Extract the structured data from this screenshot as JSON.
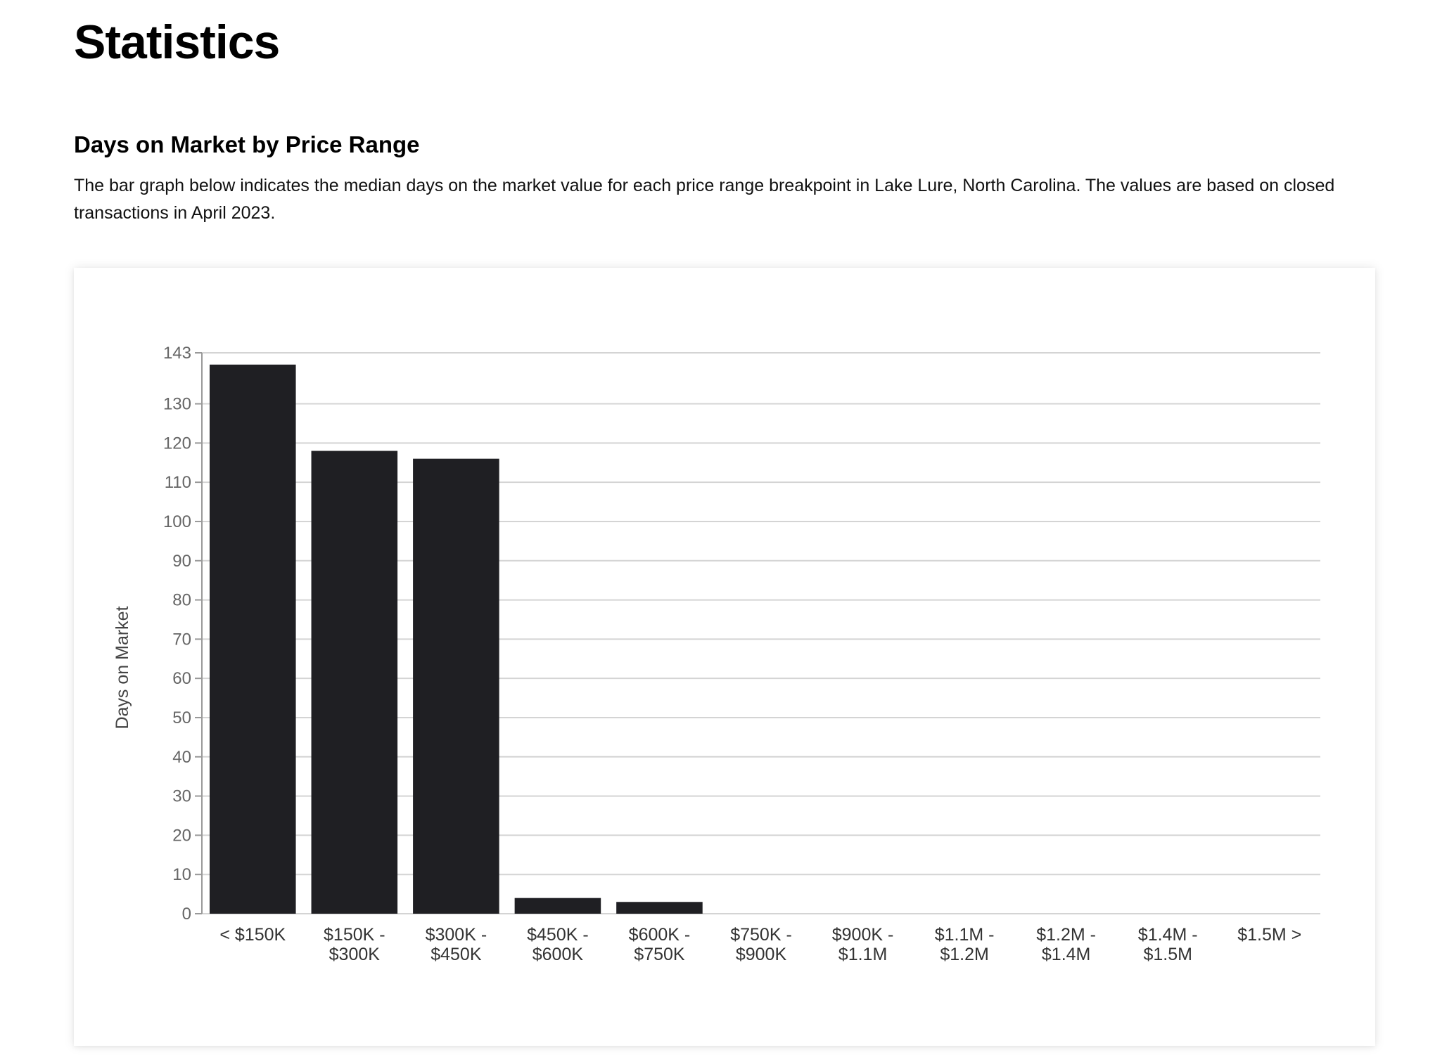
{
  "page": {
    "title": "Statistics"
  },
  "section": {
    "title": "Days on Market by Price Range",
    "description": "The bar graph below indicates the median days on the market value for each price range breakpoint in Lake Lure, North Carolina. The values are based on closed transactions in April 2023."
  },
  "chart_data": {
    "type": "bar",
    "title": "",
    "xlabel": "",
    "ylabel": "Days on Market",
    "categories": [
      [
        "< $150K"
      ],
      [
        "$150K -",
        "$300K"
      ],
      [
        "$300K -",
        "$450K"
      ],
      [
        "$450K -",
        "$600K"
      ],
      [
        "$600K -",
        "$750K"
      ],
      [
        "$750K -",
        "$900K"
      ],
      [
        "$900K -",
        "$1.1M"
      ],
      [
        "$1.1M -",
        "$1.2M"
      ],
      [
        "$1.2M -",
        "$1.4M"
      ],
      [
        "$1.4M -",
        "$1.5M"
      ],
      [
        "$1.5M >"
      ]
    ],
    "values": [
      140,
      118,
      116,
      4,
      3,
      0,
      0,
      0,
      0,
      0,
      0
    ],
    "ylim": [
      0,
      143
    ],
    "yticks": [
      0,
      10,
      20,
      30,
      40,
      50,
      60,
      70,
      80,
      90,
      100,
      110,
      120,
      130,
      143
    ],
    "grid": true,
    "legend": "none",
    "colors": {
      "bar": "#1f1f23",
      "grid": "#d4d4d4",
      "axis": "#999999"
    }
  }
}
